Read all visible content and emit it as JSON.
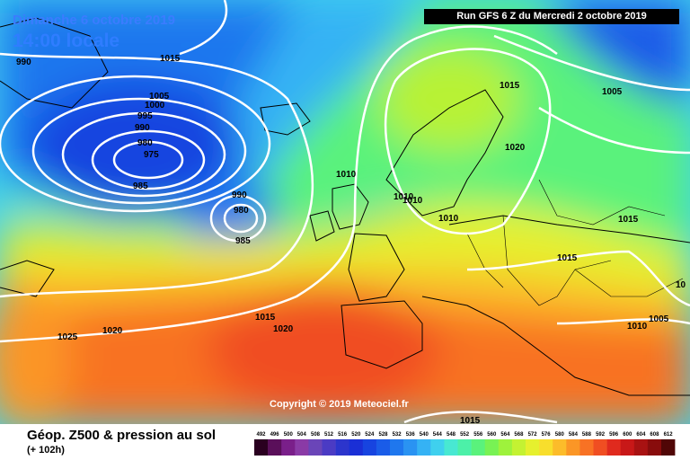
{
  "header": {
    "date_line": "Dimanche 6 octobre 2019",
    "time_line": "14:00 locale",
    "run_line": "Run GFS 6 Z du Mercredi 2 octobre 2019"
  },
  "copyright": "Copyright © 2019 Meteociel.fr",
  "footer": {
    "title": "Géop. Z500 & pression au sol",
    "subtitle": "(+ 102h)"
  },
  "legend": {
    "ticks": [
      "492",
      "496",
      "500",
      "504",
      "508",
      "512",
      "516",
      "520",
      "524",
      "528",
      "532",
      "536",
      "540",
      "544",
      "548",
      "552",
      "556",
      "560",
      "564",
      "568",
      "572",
      "576",
      "580",
      "584",
      "588",
      "592",
      "596",
      "600",
      "604",
      "608",
      "612"
    ],
    "colors": [
      "#2a0020",
      "#5a0f5a",
      "#7a1f8a",
      "#8a3aa6",
      "#6a45b8",
      "#4b3bc4",
      "#2c35cc",
      "#1a2fd6",
      "#1744e0",
      "#1a5ce8",
      "#1f77ee",
      "#2a93f2",
      "#35b2f4",
      "#3fd0ee",
      "#48e8d2",
      "#4cf0a8",
      "#5af27c",
      "#78f254",
      "#9ef23c",
      "#c4f232",
      "#e6f02e",
      "#f8de2c",
      "#fcbc2a",
      "#fb9626",
      "#f87224",
      "#f04e22",
      "#e02a1e",
      "#c81818",
      "#a81212",
      "#880c0c",
      "#500606"
    ]
  },
  "pressure_labels": [
    {
      "text": "990"
    },
    {
      "text": "1015"
    },
    {
      "text": "1005"
    },
    {
      "text": "1000"
    },
    {
      "text": "995"
    },
    {
      "text": "990"
    },
    {
      "text": "980"
    },
    {
      "text": "975"
    },
    {
      "text": "985"
    },
    {
      "text": "990"
    },
    {
      "text": "980"
    },
    {
      "text": "985"
    },
    {
      "text": "1010"
    },
    {
      "text": "1015"
    },
    {
      "text": "1005"
    },
    {
      "text": "1020"
    },
    {
      "text": "1010"
    },
    {
      "text": "1010"
    },
    {
      "text": "1010"
    },
    {
      "text": "1015"
    },
    {
      "text": "1015"
    },
    {
      "text": "1015"
    },
    {
      "text": "1020"
    },
    {
      "text": "1025"
    },
    {
      "text": "1020"
    },
    {
      "text": "1005"
    },
    {
      "text": "1010"
    },
    {
      "text": "10"
    },
    {
      "text": "1015"
    }
  ]
}
